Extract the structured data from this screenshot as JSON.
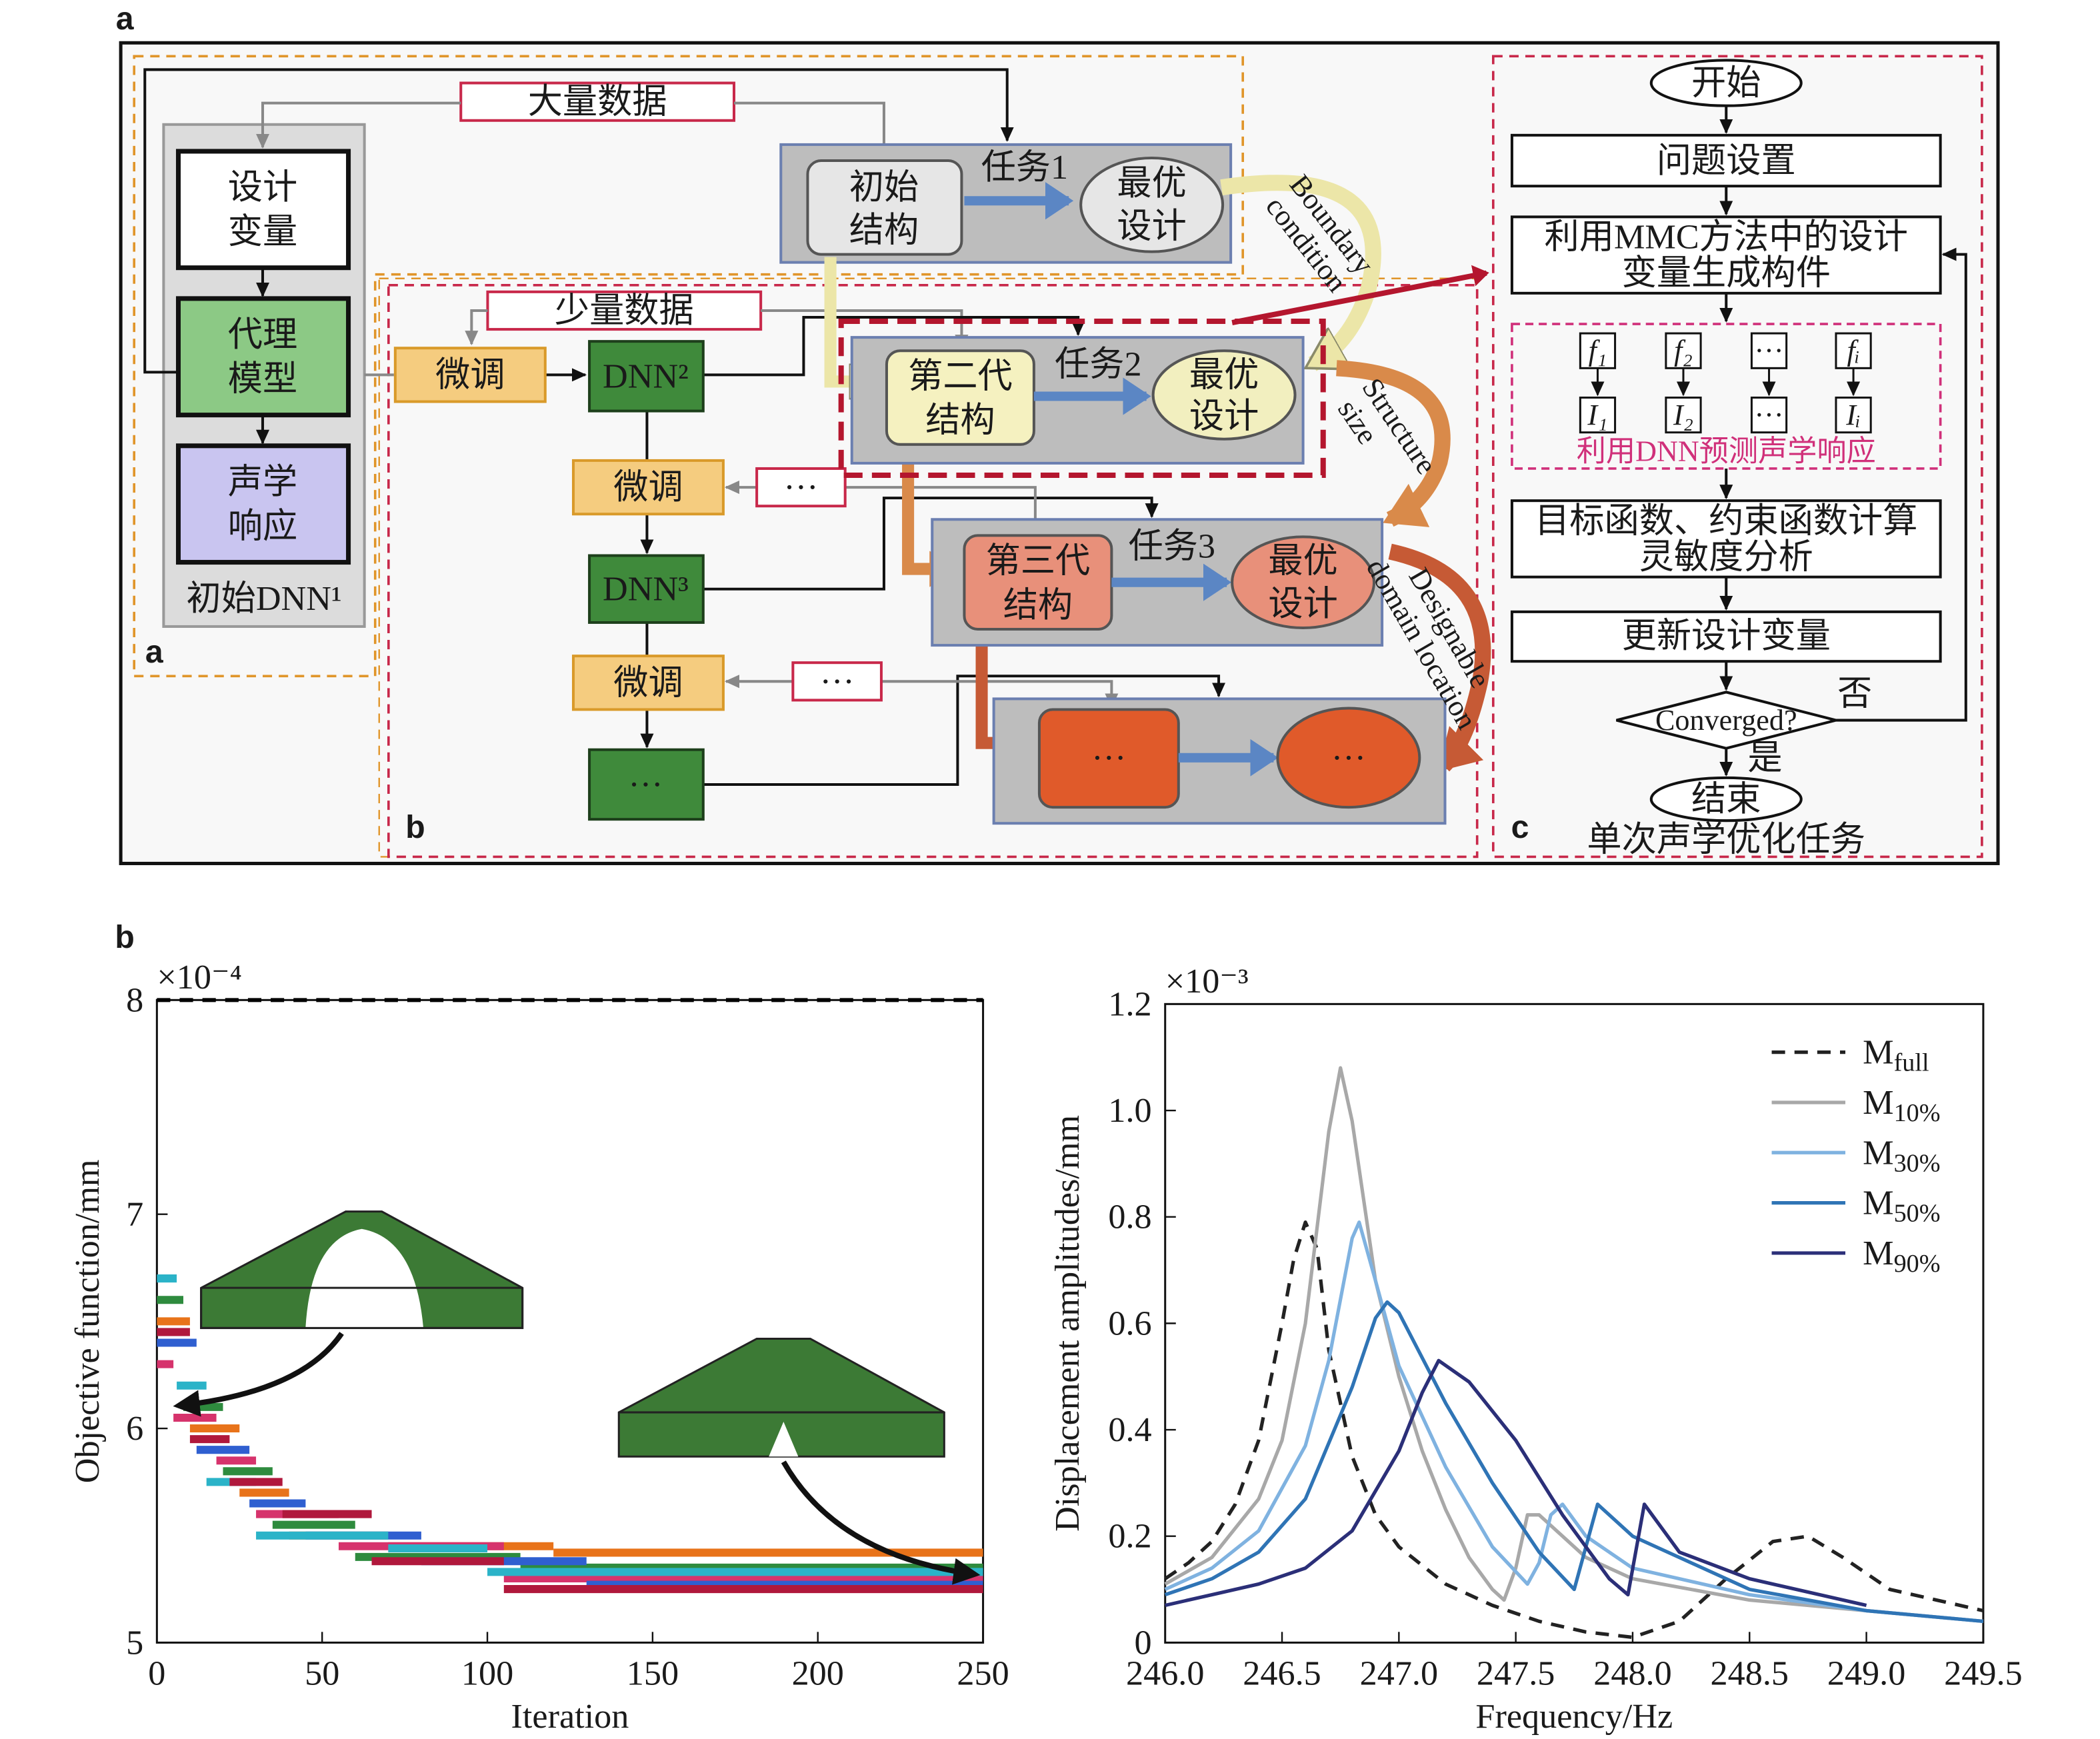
{
  "diagram": {
    "labels": {
      "figure_a": "a",
      "inset_a": "a",
      "inset_b": "b",
      "inset_c": "c",
      "figure_b": "b"
    },
    "dnn1": {
      "boxes": [
        [
          "设计",
          "变量"
        ],
        [
          "代理",
          "模型"
        ],
        [
          "声学",
          "响应"
        ]
      ],
      "caption": "初始DNN¹"
    },
    "big_data": "大量数据",
    "small_data": "少量数据",
    "finetune": [
      "微调",
      "微调",
      "微调"
    ],
    "dnn": [
      "DNN²",
      "DNN³",
      "···"
    ],
    "ellipsis_boxes": [
      "···",
      "···"
    ],
    "tasks": [
      {
        "task": "任务1",
        "structure": [
          "初始",
          "结构"
        ],
        "design": [
          "最优",
          "设计"
        ]
      },
      {
        "task": "任务2",
        "structure": [
          "第二代",
          "结构"
        ],
        "design": [
          "最优",
          "设计"
        ]
      },
      {
        "task": "任务3",
        "structure": [
          "第三代",
          "结构"
        ],
        "design": [
          "最优",
          "设计"
        ]
      },
      {
        "structure": [
          "···"
        ],
        "design": [
          "···"
        ]
      }
    ],
    "transfer": [
      [
        "Boundary",
        "condition"
      ],
      [
        "Structure",
        "size"
      ],
      [
        "Designable",
        "domain location"
      ]
    ],
    "flow": {
      "start": "开始",
      "setup": "问题设置",
      "generate": [
        "利用MMC方法中的设计",
        "变量生成构件"
      ],
      "f": [
        "f₁",
        "f₂",
        "···",
        "fᵢ"
      ],
      "i": [
        "I₁",
        "I₂",
        "···",
        "Iᵢ"
      ],
      "predict": "利用DNN预测声学响应",
      "evaluate": [
        "目标函数、约束函数计算",
        "灵敏度分析"
      ],
      "update": "更新设计变量",
      "converged": "Converged?",
      "no": "否",
      "yes": "是",
      "end": "结束",
      "caption": "单次声学优化任务"
    }
  },
  "chart_data": [
    {
      "type": "line",
      "step": "post",
      "xlabel": "Iteration",
      "ylabel": "Objective function/mm",
      "y_multiplier": "×10⁻⁴",
      "xlim": [
        0,
        250
      ],
      "ylim": [
        5,
        8
      ],
      "xticks": [
        0,
        50,
        100,
        150,
        200,
        250
      ],
      "yticks": [
        5,
        6,
        7,
        8
      ],
      "series": [
        {
          "color": "#000000",
          "linestyle": "dashed",
          "x": [
            0
          ],
          "values": [
            8
          ]
        },
        {
          "color": "#e8731a",
          "x": [
            0,
            10,
            25,
            40,
            70,
            120
          ],
          "values": [
            6.5,
            6.0,
            5.7,
            5.5,
            5.45,
            5.42
          ]
        },
        {
          "color": "#2e8b3e",
          "x": [
            0,
            8,
            20,
            35,
            60,
            110
          ],
          "values": [
            6.6,
            6.1,
            5.8,
            5.55,
            5.4,
            5.35
          ]
        },
        {
          "color": "#d6336c",
          "x": [
            0,
            5,
            18,
            30,
            55,
            105
          ],
          "values": [
            6.3,
            6.05,
            5.85,
            5.6,
            5.45,
            5.3
          ]
        },
        {
          "color": "#2f5fd0",
          "x": [
            0,
            12,
            28,
            45,
            80,
            130
          ],
          "values": [
            6.4,
            5.9,
            5.65,
            5.5,
            5.38,
            5.27
          ]
        },
        {
          "color": "#2bb3c8",
          "x": [
            0,
            6,
            15,
            30,
            70,
            100
          ],
          "values": [
            6.7,
            6.2,
            5.75,
            5.5,
            5.44,
            5.33
          ]
        },
        {
          "color": "#b0183c",
          "x": [
            0,
            10,
            22,
            38,
            65,
            105
          ],
          "values": [
            6.45,
            5.95,
            5.75,
            5.6,
            5.38,
            5.25
          ]
        }
      ]
    },
    {
      "type": "line",
      "xlabel": "Frequency/Hz",
      "ylabel": "Displacement amplitudes/mm",
      "y_multiplier": "×10⁻³",
      "xlim": [
        246,
        249.5
      ],
      "ylim": [
        0,
        1.2
      ],
      "xticks": [
        {
          "value": 246,
          "label": "246.0"
        },
        246.5,
        {
          "value": 247,
          "label": "247.0"
        },
        247.5,
        {
          "value": 248,
          "label": "248.0"
        },
        248.5,
        {
          "value": 249,
          "label": "249.0"
        },
        249.5
      ],
      "yticks": [
        0,
        0.2,
        0.4,
        0.6,
        0.8,
        {
          "value": 1,
          "label": "1.0"
        },
        1.2
      ],
      "legend": "upper right",
      "series": [
        {
          "name": "Mfull",
          "color": "#222222",
          "linestyle": "dashed",
          "x": [
            246.0,
            246.1,
            246.2,
            246.3,
            246.4,
            246.5,
            246.55,
            246.6,
            246.65,
            246.7,
            246.8,
            246.9,
            247.0,
            247.2,
            247.4,
            247.6,
            247.8,
            248.0,
            248.2,
            248.4,
            248.6,
            248.75,
            248.9,
            249.1,
            249.3,
            249.5
          ],
          "values": [
            0.12,
            0.15,
            0.19,
            0.26,
            0.38,
            0.6,
            0.72,
            0.79,
            0.74,
            0.55,
            0.35,
            0.24,
            0.18,
            0.11,
            0.07,
            0.04,
            0.02,
            0.01,
            0.04,
            0.12,
            0.19,
            0.2,
            0.16,
            0.1,
            0.08,
            0.06
          ]
        },
        {
          "name": "M10%",
          "color": "#a8a8a8",
          "x": [
            246.0,
            246.2,
            246.4,
            246.5,
            246.6,
            246.7,
            246.75,
            246.8,
            246.9,
            247.0,
            247.1,
            247.2,
            247.3,
            247.4,
            247.45,
            247.5,
            247.55,
            247.6,
            247.7,
            247.8,
            248.0,
            248.5,
            249.0,
            249.5
          ],
          "values": [
            0.11,
            0.16,
            0.27,
            0.38,
            0.6,
            0.96,
            1.08,
            0.98,
            0.68,
            0.5,
            0.36,
            0.25,
            0.16,
            0.1,
            0.08,
            0.14,
            0.24,
            0.24,
            0.2,
            0.16,
            0.12,
            0.08,
            0.06,
            0.04
          ]
        },
        {
          "name": "M30%",
          "color": "#7fb2e0",
          "x": [
            246.0,
            246.2,
            246.4,
            246.6,
            246.7,
            246.8,
            246.83,
            246.9,
            247.0,
            247.2,
            247.4,
            247.55,
            247.6,
            247.65,
            247.7,
            247.8,
            248.0,
            248.5,
            249.0,
            249.5
          ],
          "values": [
            0.1,
            0.14,
            0.21,
            0.37,
            0.53,
            0.76,
            0.79,
            0.68,
            0.52,
            0.33,
            0.18,
            0.11,
            0.15,
            0.24,
            0.26,
            0.2,
            0.14,
            0.09,
            0.06,
            0.04
          ]
        },
        {
          "name": "M50%",
          "color": "#2f74b5",
          "x": [
            246.0,
            246.2,
            246.4,
            246.6,
            246.8,
            246.9,
            246.95,
            247.0,
            247.2,
            247.4,
            247.6,
            247.75,
            247.8,
            247.85,
            247.9,
            248.0,
            248.5,
            249.0,
            249.5
          ],
          "values": [
            0.09,
            0.12,
            0.17,
            0.27,
            0.48,
            0.61,
            0.64,
            0.62,
            0.45,
            0.3,
            0.17,
            0.1,
            0.18,
            0.26,
            0.24,
            0.2,
            0.1,
            0.06,
            0.04
          ]
        },
        {
          "name": "M90%",
          "color": "#2b2f78",
          "x": [
            246.0,
            246.2,
            246.4,
            246.6,
            246.8,
            247.0,
            247.1,
            247.17,
            247.3,
            247.5,
            247.7,
            247.9,
            247.98,
            248.05,
            248.1,
            248.2,
            248.5,
            249.0
          ],
          "values": [
            0.07,
            0.09,
            0.11,
            0.14,
            0.21,
            0.36,
            0.47,
            0.53,
            0.49,
            0.38,
            0.24,
            0.12,
            0.09,
            0.26,
            0.23,
            0.17,
            0.12,
            0.07
          ]
        }
      ]
    }
  ]
}
